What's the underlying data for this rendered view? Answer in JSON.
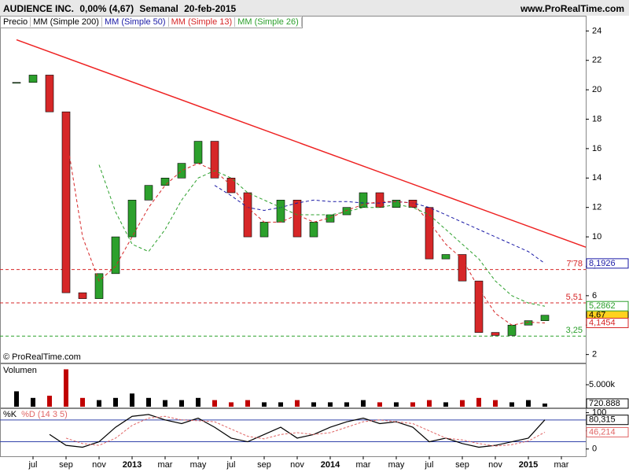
{
  "header": {
    "title": "AUDIENCE INC.",
    "change": "0,00% (4,67)",
    "period": "Semanal",
    "date": "20-feb-2015",
    "site": "www.ProRealTime.com"
  },
  "chart_data": [
    {
      "type": "candlestick",
      "copyright": "© ProRealTime.com",
      "ylim": [
        1.5,
        24.5
      ],
      "yticks": [
        2,
        4,
        6,
        8,
        10,
        12,
        14,
        16,
        18,
        20,
        22,
        24
      ],
      "series": [
        {
          "name": "Precio",
          "kind": "candle",
          "up_color": "#2ca02c",
          "down_color": "#d62728",
          "values": [
            20.5,
            21,
            18.5,
            6.2,
            5.8,
            7.5,
            10,
            12.5,
            13.5,
            14,
            15,
            16.5,
            14,
            13,
            10,
            11,
            12.5,
            10,
            11,
            11.5,
            12,
            13,
            12,
            12.5,
            12,
            8.5,
            8.8,
            7,
            3.5,
            3.3,
            4,
            4.3,
            4.67,
            null
          ],
          "value_labels": [
            null,
            null,
            null,
            null,
            null,
            null,
            null,
            null,
            null,
            null,
            null,
            null,
            null,
            null,
            null,
            null,
            null,
            null,
            null,
            null,
            null,
            null,
            null,
            null,
            null,
            null,
            null,
            null,
            null,
            null,
            null,
            null,
            "4,67",
            null
          ]
        },
        {
          "name": "MM (Simple 200)",
          "kind": "line",
          "color": "#000000",
          "values": [
            null,
            null,
            null,
            null,
            null,
            null,
            null,
            null,
            null,
            null,
            null,
            null,
            null,
            null,
            null,
            null,
            null,
            null,
            null,
            null,
            null,
            null,
            null,
            null,
            null,
            null,
            null,
            null,
            null,
            null,
            null,
            null,
            null,
            null
          ]
        },
        {
          "name": "MM (Simple 50)",
          "kind": "line",
          "color": "#1a1aa6",
          "values": [
            null,
            null,
            null,
            null,
            null,
            null,
            null,
            null,
            null,
            null,
            null,
            null,
            13.5,
            12.8,
            12,
            11.8,
            12,
            12.3,
            12.5,
            12.4,
            12.4,
            12.3,
            12.3,
            12.4,
            12.3,
            12,
            11.5,
            11,
            10.5,
            10,
            9.5,
            9,
            8.1926,
            null
          ],
          "value_labels": [
            null,
            null,
            null,
            null,
            null,
            null,
            null,
            null,
            null,
            null,
            null,
            null,
            null,
            null,
            null,
            null,
            null,
            null,
            null,
            null,
            null,
            null,
            null,
            null,
            null,
            null,
            null,
            null,
            null,
            null,
            null,
            null,
            "8,1926",
            null
          ]
        },
        {
          "name": "MM (Simple 13)",
          "kind": "line",
          "color": "#d62728",
          "values": [
            null,
            null,
            null,
            17,
            10,
            7,
            8,
            10,
            12,
            13.5,
            14.5,
            15,
            14.5,
            13.5,
            12,
            11,
            11,
            11.5,
            11,
            11.3,
            11.8,
            12.2,
            12.4,
            12.4,
            12.3,
            11,
            9.5,
            8.5,
            6.5,
            4.8,
            4,
            4.2,
            4.1454,
            null
          ],
          "value_labels": [
            null,
            null,
            null,
            null,
            null,
            null,
            null,
            null,
            null,
            null,
            null,
            null,
            null,
            null,
            null,
            null,
            null,
            null,
            null,
            null,
            null,
            null,
            null,
            null,
            null,
            null,
            null,
            null,
            null,
            null,
            null,
            null,
            "4,1454",
            null
          ]
        },
        {
          "name": "MM (Simple 26)",
          "kind": "line",
          "color": "#2ca02c",
          "values": [
            null,
            null,
            null,
            null,
            null,
            14.9,
            11.7,
            9.5,
            9,
            10.5,
            12.5,
            14,
            14.5,
            14,
            13,
            12.5,
            12,
            11.5,
            11.5,
            11.5,
            11.7,
            12,
            12,
            12.2,
            12,
            11.5,
            10.5,
            9.5,
            8.5,
            7,
            6,
            5.5,
            5.2862,
            null
          ],
          "value_labels": [
            null,
            null,
            null,
            null,
            null,
            null,
            null,
            null,
            null,
            null,
            null,
            null,
            null,
            null,
            null,
            null,
            null,
            null,
            null,
            null,
            null,
            null,
            null,
            null,
            null,
            null,
            null,
            null,
            null,
            null,
            null,
            null,
            "5,2862",
            null
          ]
        }
      ],
      "levels": [
        {
          "value": 7.78,
          "label": "7'78",
          "color": "#d62728"
        },
        {
          "value": 5.51,
          "label": "5,51",
          "color": "#d62728"
        },
        {
          "value": 3.25,
          "label": "3,25",
          "color": "#2ca02c"
        }
      ],
      "trendline": {
        "values": [
          23.4,
          9.3
        ],
        "color": "#ee2222"
      }
    },
    {
      "type": "bar",
      "title": "Volumen",
      "ylim": [
        0,
        9300000
      ],
      "yticks": [
        {
          "value": 5000000,
          "label": "5.000k"
        }
      ],
      "up_color": "#000000",
      "down_color": "#c00000",
      "values": [
        3500000,
        2000000,
        2500000,
        8500000,
        2000000,
        1500000,
        2000000,
        3000000,
        2000000,
        1500000,
        1500000,
        2000000,
        1500000,
        1000000,
        1500000,
        1000000,
        1000000,
        1500000,
        1000000,
        1000000,
        1000000,
        1500000,
        1000000,
        1000000,
        1000000,
        1500000,
        1000000,
        1500000,
        2000000,
        1500000,
        1000000,
        1500000,
        720888,
        null
      ],
      "value_labels": [
        null,
        null,
        null,
        null,
        null,
        null,
        null,
        null,
        null,
        null,
        null,
        null,
        null,
        null,
        null,
        null,
        null,
        null,
        null,
        null,
        null,
        null,
        null,
        null,
        null,
        null,
        null,
        null,
        null,
        null,
        null,
        null,
        "720.888",
        null
      ]
    },
    {
      "type": "line",
      "ylim": [
        -20,
        110
      ],
      "yticks": [
        0,
        50,
        100
      ],
      "levels": [
        80,
        20
      ],
      "categories": [
        null,
        "jul",
        null,
        "sep",
        null,
        "nov",
        null,
        "2013",
        null,
        "mar",
        null,
        "may",
        null,
        "jul",
        null,
        "sep",
        null,
        "nov",
        null,
        "2014",
        null,
        "mar",
        null,
        "may",
        null,
        "jul",
        null,
        "sep",
        null,
        "nov",
        null,
        "2015",
        null,
        "mar"
      ],
      "series": [
        {
          "name": "%K",
          "color": "#000000",
          "values": [
            null,
            null,
            40,
            10,
            5,
            20,
            60,
            90,
            95,
            80,
            70,
            85,
            60,
            30,
            20,
            40,
            60,
            30,
            40,
            60,
            75,
            85,
            70,
            75,
            60,
            20,
            30,
            15,
            5,
            10,
            20,
            30,
            80.315,
            null
          ],
          "value_labels": [
            null,
            null,
            null,
            null,
            null,
            null,
            null,
            null,
            null,
            null,
            null,
            null,
            null,
            null,
            null,
            null,
            null,
            null,
            null,
            null,
            null,
            null,
            null,
            null,
            null,
            null,
            null,
            null,
            null,
            null,
            null,
            null,
            "80,315",
            null
          ]
        },
        {
          "name": "%D (14 3 5)",
          "color": "#e06666",
          "values": [
            null,
            null,
            null,
            30,
            15,
            10,
            30,
            65,
            85,
            90,
            80,
            78,
            75,
            55,
            35,
            28,
            40,
            45,
            40,
            45,
            60,
            75,
            80,
            75,
            70,
            50,
            30,
            25,
            15,
            8,
            12,
            22,
            46.214,
            null
          ],
          "value_labels": [
            null,
            null,
            null,
            null,
            null,
            null,
            null,
            null,
            null,
            null,
            null,
            null,
            null,
            null,
            null,
            null,
            null,
            null,
            null,
            null,
            null,
            null,
            null,
            null,
            null,
            null,
            null,
            null,
            null,
            null,
            null,
            null,
            "46,214",
            null
          ]
        }
      ]
    }
  ]
}
